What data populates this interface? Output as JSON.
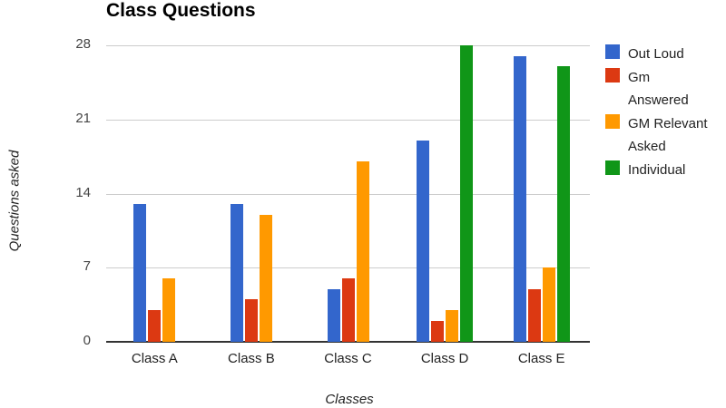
{
  "chart_data": {
    "type": "bar",
    "title": "Class Questions",
    "xlabel": "Classes",
    "ylabel": "Questions asked",
    "ylim": [
      0,
      28
    ],
    "yticks": [
      "0",
      "7",
      "14",
      "21",
      "28"
    ],
    "grid": true,
    "legend_position": "right",
    "categories": [
      "Class A",
      "Class B",
      "Class C",
      "Class D",
      "Class E"
    ],
    "series": [
      {
        "name": "Out Loud",
        "color": "#3366cc",
        "values": [
          13,
          13,
          5,
          19,
          27
        ]
      },
      {
        "name": "Gm Answered",
        "color": "#dc3912",
        "values": [
          3,
          4,
          6,
          2,
          5
        ]
      },
      {
        "name": "GM Relevant Asked",
        "color": "#ff9900",
        "values": [
          6,
          12,
          17,
          3,
          7
        ]
      },
      {
        "name": "Individual",
        "color": "#109618",
        "values": [
          0,
          0,
          0,
          28,
          26
        ]
      }
    ]
  },
  "legend": [
    {
      "label": "Out Loud",
      "color": "#3366cc"
    },
    {
      "label": "Gm\nAnswered",
      "color": "#dc3912"
    },
    {
      "label": "GM Relevant\nAsked",
      "color": "#ff9900"
    },
    {
      "label": "Individual",
      "color": "#109618"
    }
  ]
}
